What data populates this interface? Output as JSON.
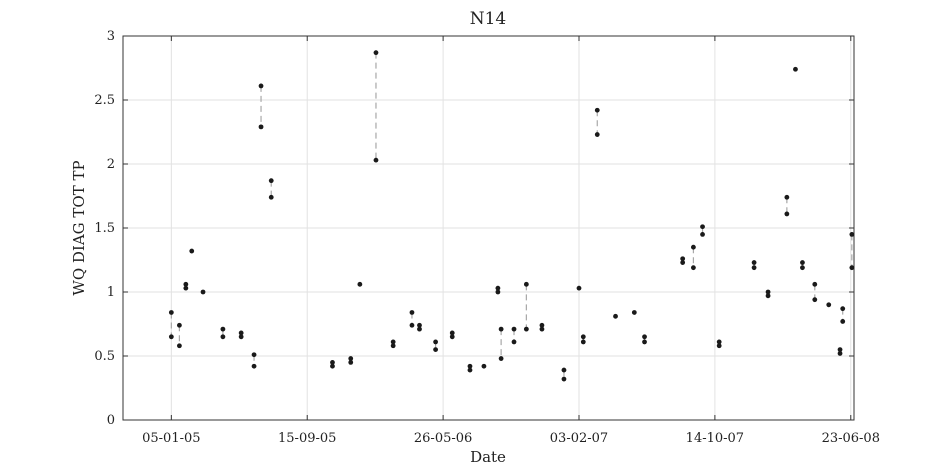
{
  "chart_data": {
    "type": "scatter",
    "title": "N14",
    "xlabel": "Date",
    "ylabel": "WQ DIAG TOT TP",
    "x_tick_labels": [
      "05-01-05",
      "15-09-05",
      "26-05-06",
      "03-02-07",
      "14-10-07",
      "23-06-08"
    ],
    "x_tick_dates": [
      "2005-01-05",
      "2005-09-15",
      "2006-05-26",
      "2007-02-03",
      "2007-10-14",
      "2008-06-23"
    ],
    "xlim": [
      "2004-10-07",
      "2008-06-29"
    ],
    "ylim": [
      0,
      3
    ],
    "y_ticks": [
      0,
      0.5,
      1,
      1.5,
      2,
      2.5,
      3
    ],
    "grid": true,
    "pairs": [
      {
        "date": "2005-01-05",
        "values": [
          0.84,
          0.65
        ]
      },
      {
        "date": "2005-01-20",
        "values": [
          0.74,
          0.58
        ]
      },
      {
        "date": "2005-02-01",
        "values": [
          1.06,
          1.03
        ]
      },
      {
        "date": "2005-02-12",
        "values": [
          1.32
        ]
      },
      {
        "date": "2005-03-05",
        "values": [
          1.0
        ]
      },
      {
        "date": "2005-04-11",
        "values": [
          0.71,
          0.65
        ]
      },
      {
        "date": "2005-05-15",
        "values": [
          0.68,
          0.65
        ]
      },
      {
        "date": "2005-06-08",
        "values": [
          0.51,
          0.42
        ]
      },
      {
        "date": "2005-06-21",
        "values": [
          2.61,
          2.29
        ]
      },
      {
        "date": "2005-07-10",
        "values": [
          1.87,
          1.74
        ]
      },
      {
        "date": "2005-11-01",
        "values": [
          0.45,
          0.42
        ]
      },
      {
        "date": "2005-12-05",
        "values": [
          0.48,
          0.45
        ]
      },
      {
        "date": "2005-12-22",
        "values": [
          1.06
        ]
      },
      {
        "date": "2006-01-21",
        "values": [
          2.87,
          2.03
        ]
      },
      {
        "date": "2006-02-22",
        "values": [
          0.61,
          0.58
        ]
      },
      {
        "date": "2006-03-29",
        "values": [
          0.84,
          0.74
        ]
      },
      {
        "date": "2006-04-12",
        "values": [
          0.74,
          0.71
        ]
      },
      {
        "date": "2006-05-12",
        "values": [
          0.61,
          0.55
        ]
      },
      {
        "date": "2006-06-12",
        "values": [
          0.68,
          0.65
        ]
      },
      {
        "date": "2006-07-15",
        "values": [
          0.42,
          0.39
        ]
      },
      {
        "date": "2006-08-10",
        "values": [
          0.42
        ]
      },
      {
        "date": "2006-09-05",
        "values": [
          1.03,
          1.0
        ]
      },
      {
        "date": "2006-09-11",
        "values": [
          0.71,
          0.48
        ]
      },
      {
        "date": "2006-10-05",
        "values": [
          0.71,
          0.61
        ]
      },
      {
        "date": "2006-10-28",
        "values": [
          1.06,
          0.71
        ]
      },
      {
        "date": "2006-11-26",
        "values": [
          0.74,
          0.71
        ]
      },
      {
        "date": "2007-01-06",
        "values": [
          0.39,
          0.32
        ]
      },
      {
        "date": "2007-02-03",
        "values": [
          1.03
        ]
      },
      {
        "date": "2007-02-11",
        "values": [
          0.65,
          0.61
        ]
      },
      {
        "date": "2007-03-09",
        "values": [
          2.42,
          2.23
        ]
      },
      {
        "date": "2007-04-12",
        "values": [
          0.81
        ]
      },
      {
        "date": "2007-05-17",
        "values": [
          0.84
        ]
      },
      {
        "date": "2007-06-05",
        "values": [
          0.65,
          0.61
        ]
      },
      {
        "date": "2007-08-15",
        "values": [
          1.26,
          1.23
        ]
      },
      {
        "date": "2007-09-04",
        "values": [
          1.35,
          1.19
        ]
      },
      {
        "date": "2007-09-21",
        "values": [
          1.51,
          1.45
        ]
      },
      {
        "date": "2007-10-22",
        "values": [
          0.61,
          0.58
        ]
      },
      {
        "date": "2007-12-26",
        "values": [
          1.23,
          1.19
        ]
      },
      {
        "date": "2008-01-21",
        "values": [
          1.0,
          0.97
        ]
      },
      {
        "date": "2008-02-25",
        "values": [
          1.74,
          1.61
        ]
      },
      {
        "date": "2008-03-12",
        "values": [
          2.74
        ]
      },
      {
        "date": "2008-03-25",
        "values": [
          1.23,
          1.19
        ]
      },
      {
        "date": "2008-04-17",
        "values": [
          1.06,
          0.94
        ]
      },
      {
        "date": "2008-05-13",
        "values": [
          0.9
        ]
      },
      {
        "date": "2008-06-03",
        "values": [
          0.55,
          0.52
        ]
      },
      {
        "date": "2008-06-08",
        "values": [
          0.87,
          0.77
        ]
      },
      {
        "date": "2008-06-25",
        "values": [
          1.45,
          1.19
        ]
      }
    ]
  }
}
